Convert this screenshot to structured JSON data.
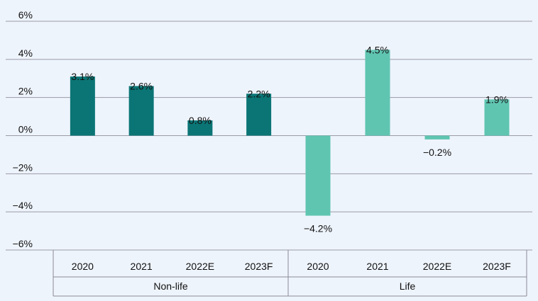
{
  "chart_data": {
    "type": "bar",
    "title": "",
    "xlabel": "",
    "ylabel": "",
    "ylim": [
      -6,
      6
    ],
    "yticks": [
      6,
      4,
      2,
      0,
      -2,
      -4,
      -6
    ],
    "ytick_labels": [
      "6%",
      "4%",
      "2%",
      "0%",
      "−2%",
      "−4%",
      "−6%"
    ],
    "grid": true,
    "groups": [
      {
        "label": "Non-life",
        "color": "#0b7575",
        "categories": [
          "2020",
          "2021",
          "2022E",
          "2023F"
        ],
        "values": [
          3.1,
          2.6,
          0.8,
          2.2
        ],
        "data_labels": [
          "3.1%",
          "2.6%",
          "0.8%",
          "2.2%"
        ]
      },
      {
        "label": "Life",
        "color": "#5fc5b1",
        "categories": [
          "2020",
          "2021",
          "2022E",
          "2023F"
        ],
        "values": [
          -4.2,
          4.5,
          -0.2,
          1.9
        ],
        "data_labels": [
          "−4.2%",
          "4.5%",
          "−0.2%",
          "1.9%"
        ]
      }
    ]
  },
  "colors": {
    "background": "#eef4fc",
    "grid": "#9a9aa6",
    "axis_box": "#8a8a96",
    "non_life": "#0b7575",
    "life": "#5fc5b1"
  }
}
